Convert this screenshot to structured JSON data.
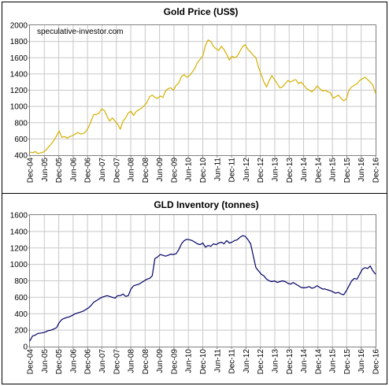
{
  "chart_data": [
    {
      "type": "line",
      "title": "Gold  Price (US$)",
      "watermark": "speculative-investor.com",
      "xlabel": "",
      "ylabel": "",
      "ylim": [
        400,
        2000
      ],
      "yticks": [
        "400",
        "600",
        "800",
        "1000",
        "1200",
        "1400",
        "1600",
        "1800",
        "2000"
      ],
      "categories": [
        "Dec-04",
        "Jun-05",
        "Dec-05",
        "Jun-06",
        "Dec-06",
        "Jun-07",
        "Dec-07",
        "Jun-08",
        "Dec-08",
        "Jun-09",
        "Dec-09",
        "Jun-10",
        "Dec-10",
        "Jun-11",
        "Dec-11",
        "Jun-12",
        "Dec-12",
        "Jun-13",
        "Dec-13",
        "Jun-14",
        "Dec-14",
        "Jun-15",
        "Dec-15",
        "Jun-16",
        "Dec-16"
      ],
      "grid": true,
      "legend": "none",
      "series": [
        {
          "color": "#d4b000",
          "values": [
            [
              0,
              438
            ],
            [
              1,
              430
            ],
            [
              2,
              445
            ],
            [
              3,
              420
            ],
            [
              4,
              428
            ],
            [
              5,
              438
            ],
            [
              6,
              462
            ],
            [
              7,
              500
            ],
            [
              8,
              540
            ],
            [
              9,
              580
            ],
            [
              10,
              640
            ],
            [
              11,
              700
            ],
            [
              12,
              620
            ],
            [
              13,
              630
            ],
            [
              14,
              610
            ],
            [
              15,
              630
            ],
            [
              16,
              640
            ],
            [
              17,
              660
            ],
            [
              18,
              680
            ],
            [
              19,
              660
            ],
            [
              20,
              665
            ],
            [
              21,
              690
            ],
            [
              22,
              740
            ],
            [
              23,
              820
            ],
            [
              24,
              900
            ],
            [
              25,
              900
            ],
            [
              26,
              920
            ],
            [
              27,
              970
            ],
            [
              28,
              950
            ],
            [
              29,
              880
            ],
            [
              30,
              820
            ],
            [
              31,
              860
            ],
            [
              32,
              820
            ],
            [
              33,
              780
            ],
            [
              34,
              720
            ],
            [
              35,
              820
            ],
            [
              36,
              860
            ],
            [
              37,
              920
            ],
            [
              38,
              940
            ],
            [
              39,
              890
            ],
            [
              40,
              940
            ],
            [
              41,
              960
            ],
            [
              42,
              980
            ],
            [
              43,
              1010
            ],
            [
              44,
              1050
            ],
            [
              45,
              1120
            ],
            [
              46,
              1140
            ],
            [
              47,
              1110
            ],
            [
              48,
              1100
            ],
            [
              49,
              1130
            ],
            [
              50,
              1110
            ],
            [
              51,
              1190
            ],
            [
              52,
              1220
            ],
            [
              53,
              1230
            ],
            [
              54,
              1200
            ],
            [
              55,
              1260
            ],
            [
              56,
              1290
            ],
            [
              57,
              1370
            ],
            [
              58,
              1390
            ],
            [
              59,
              1360
            ],
            [
              60,
              1380
            ],
            [
              61,
              1420
            ],
            [
              62,
              1470
            ],
            [
              63,
              1540
            ],
            [
              64,
              1580
            ],
            [
              65,
              1620
            ],
            [
              66,
              1750
            ],
            [
              67,
              1820
            ],
            [
              68,
              1800
            ],
            [
              69,
              1740
            ],
            [
              70,
              1710
            ],
            [
              71,
              1690
            ],
            [
              72,
              1740
            ],
            [
              73,
              1700
            ],
            [
              74,
              1640
            ],
            [
              75,
              1570
            ],
            [
              76,
              1620
            ],
            [
              77,
              1600
            ],
            [
              78,
              1620
            ],
            [
              79,
              1680
            ],
            [
              80,
              1740
            ],
            [
              81,
              1760
            ],
            [
              82,
              1700
            ],
            [
              83,
              1670
            ],
            [
              84,
              1630
            ],
            [
              85,
              1600
            ],
            [
              86,
              1480
            ],
            [
              87,
              1390
            ],
            [
              88,
              1300
            ],
            [
              89,
              1240
            ],
            [
              90,
              1320
            ],
            [
              91,
              1380
            ],
            [
              92,
              1330
            ],
            [
              93,
              1280
            ],
            [
              94,
              1230
            ],
            [
              95,
              1240
            ],
            [
              96,
              1280
            ],
            [
              97,
              1320
            ],
            [
              98,
              1300
            ],
            [
              99,
              1320
            ],
            [
              100,
              1330
            ],
            [
              101,
              1280
            ],
            [
              102,
              1300
            ],
            [
              103,
              1260
            ],
            [
              104,
              1220
            ],
            [
              105,
              1200
            ],
            [
              106,
              1180
            ],
            [
              107,
              1210
            ],
            [
              108,
              1250
            ],
            [
              109,
              1220
            ],
            [
              110,
              1190
            ],
            [
              111,
              1200
            ],
            [
              112,
              1180
            ],
            [
              113,
              1170
            ],
            [
              114,
              1100
            ],
            [
              115,
              1120
            ],
            [
              116,
              1140
            ],
            [
              117,
              1100
            ],
            [
              118,
              1070
            ],
            [
              119,
              1090
            ],
            [
              120,
              1200
            ],
            [
              121,
              1240
            ],
            [
              122,
              1260
            ],
            [
              123,
              1280
            ],
            [
              124,
              1320
            ],
            [
              125,
              1340
            ],
            [
              126,
              1360
            ],
            [
              127,
              1330
            ],
            [
              128,
              1300
            ],
            [
              129,
              1260
            ],
            [
              130,
              1160
            ]
          ]
        }
      ]
    },
    {
      "type": "line",
      "title": "GLD  Inventory (tonnes)",
      "xlabel": "",
      "ylabel": "",
      "ylim": [
        0,
        1600
      ],
      "yticks": [
        "0",
        "200",
        "400",
        "600",
        "800",
        "1000",
        "1200",
        "1400",
        "1600"
      ],
      "categories": [
        "Dec-04",
        "Jun-05",
        "Dec-05",
        "Jun-06",
        "Dec-06",
        "Jun-07",
        "Dec-07",
        "Jun-08",
        "Dec-08",
        "Jun-09",
        "Dec-09",
        "Jun-10",
        "Dec-10",
        "Jun-11",
        "Dec-11",
        "Jun-12",
        "Dec-12",
        "Jun-13",
        "Dec-13",
        "Jun-14",
        "Dec-14",
        "Jun-15",
        "Dec-15",
        "Jun-16",
        "Dec-16"
      ],
      "grid": true,
      "legend": "none",
      "series": [
        {
          "color": "#000066",
          "values": [
            [
              0,
              70
            ],
            [
              1,
              130
            ],
            [
              2,
              140
            ],
            [
              3,
              160
            ],
            [
              4,
              165
            ],
            [
              5,
              170
            ],
            [
              6,
              180
            ],
            [
              7,
              195
            ],
            [
              8,
              200
            ],
            [
              9,
              215
            ],
            [
              10,
              230
            ],
            [
              11,
              290
            ],
            [
              12,
              330
            ],
            [
              13,
              345
            ],
            [
              14,
              355
            ],
            [
              15,
              365
            ],
            [
              16,
              380
            ],
            [
              17,
              400
            ],
            [
              18,
              410
            ],
            [
              19,
              420
            ],
            [
              20,
              430
            ],
            [
              21,
              450
            ],
            [
              22,
              470
            ],
            [
              23,
              500
            ],
            [
              24,
              540
            ],
            [
              25,
              560
            ],
            [
              26,
              580
            ],
            [
              27,
              600
            ],
            [
              28,
              610
            ],
            [
              29,
              620
            ],
            [
              30,
              610
            ],
            [
              31,
              600
            ],
            [
              32,
              590
            ],
            [
              33,
              620
            ],
            [
              34,
              620
            ],
            [
              35,
              640
            ],
            [
              36,
              610
            ],
            [
              37,
              620
            ],
            [
              38,
              700
            ],
            [
              39,
              740
            ],
            [
              40,
              750
            ],
            [
              41,
              760
            ],
            [
              42,
              780
            ],
            [
              43,
              800
            ],
            [
              44,
              820
            ],
            [
              45,
              830
            ],
            [
              46,
              860
            ],
            [
              47,
              1070
            ],
            [
              48,
              1090
            ],
            [
              49,
              1120
            ],
            [
              50,
              1110
            ],
            [
              51,
              1100
            ],
            [
              52,
              1110
            ],
            [
              53,
              1125
            ],
            [
              54,
              1120
            ],
            [
              55,
              1130
            ],
            [
              56,
              1180
            ],
            [
              57,
              1250
            ],
            [
              58,
              1290
            ],
            [
              59,
              1305
            ],
            [
              60,
              1300
            ],
            [
              61,
              1290
            ],
            [
              62,
              1270
            ],
            [
              63,
              1250
            ],
            [
              64,
              1240
            ],
            [
              65,
              1260
            ],
            [
              66,
              1210
            ],
            [
              67,
              1230
            ],
            [
              68,
              1220
            ],
            [
              69,
              1250
            ],
            [
              70,
              1240
            ],
            [
              71,
              1260
            ],
            [
              72,
              1270
            ],
            [
              73,
              1250
            ],
            [
              74,
              1290
            ],
            [
              75,
              1260
            ],
            [
              76,
              1270
            ],
            [
              77,
              1290
            ],
            [
              78,
              1300
            ],
            [
              79,
              1330
            ],
            [
              80,
              1350
            ],
            [
              81,
              1340
            ],
            [
              82,
              1300
            ],
            [
              83,
              1250
            ],
            [
              84,
              1100
            ],
            [
              85,
              960
            ],
            [
              86,
              920
            ],
            [
              87,
              880
            ],
            [
              88,
              860
            ],
            [
              89,
              820
            ],
            [
              90,
              800
            ],
            [
              91,
              790
            ],
            [
              92,
              800
            ],
            [
              93,
              780
            ],
            [
              94,
              790
            ],
            [
              95,
              800
            ],
            [
              96,
              790
            ],
            [
              97,
              770
            ],
            [
              98,
              760
            ],
            [
              99,
              780
            ],
            [
              100,
              760
            ],
            [
              101,
              740
            ],
            [
              102,
              720
            ],
            [
              103,
              715
            ],
            [
              104,
              720
            ],
            [
              105,
              730
            ],
            [
              106,
              710
            ],
            [
              107,
              720
            ],
            [
              108,
              740
            ],
            [
              109,
              720
            ],
            [
              110,
              700
            ],
            [
              111,
              700
            ],
            [
              112,
              690
            ],
            [
              113,
              680
            ],
            [
              114,
              665
            ],
            [
              115,
              650
            ],
            [
              116,
              660
            ],
            [
              117,
              640
            ],
            [
              118,
              630
            ],
            [
              119,
              680
            ],
            [
              120,
              740
            ],
            [
              121,
              800
            ],
            [
              122,
              830
            ],
            [
              123,
              820
            ],
            [
              124,
              880
            ],
            [
              125,
              940
            ],
            [
              126,
              960
            ],
            [
              127,
              950
            ],
            [
              128,
              980
            ],
            [
              129,
              920
            ],
            [
              130,
              880
            ]
          ]
        }
      ]
    }
  ]
}
